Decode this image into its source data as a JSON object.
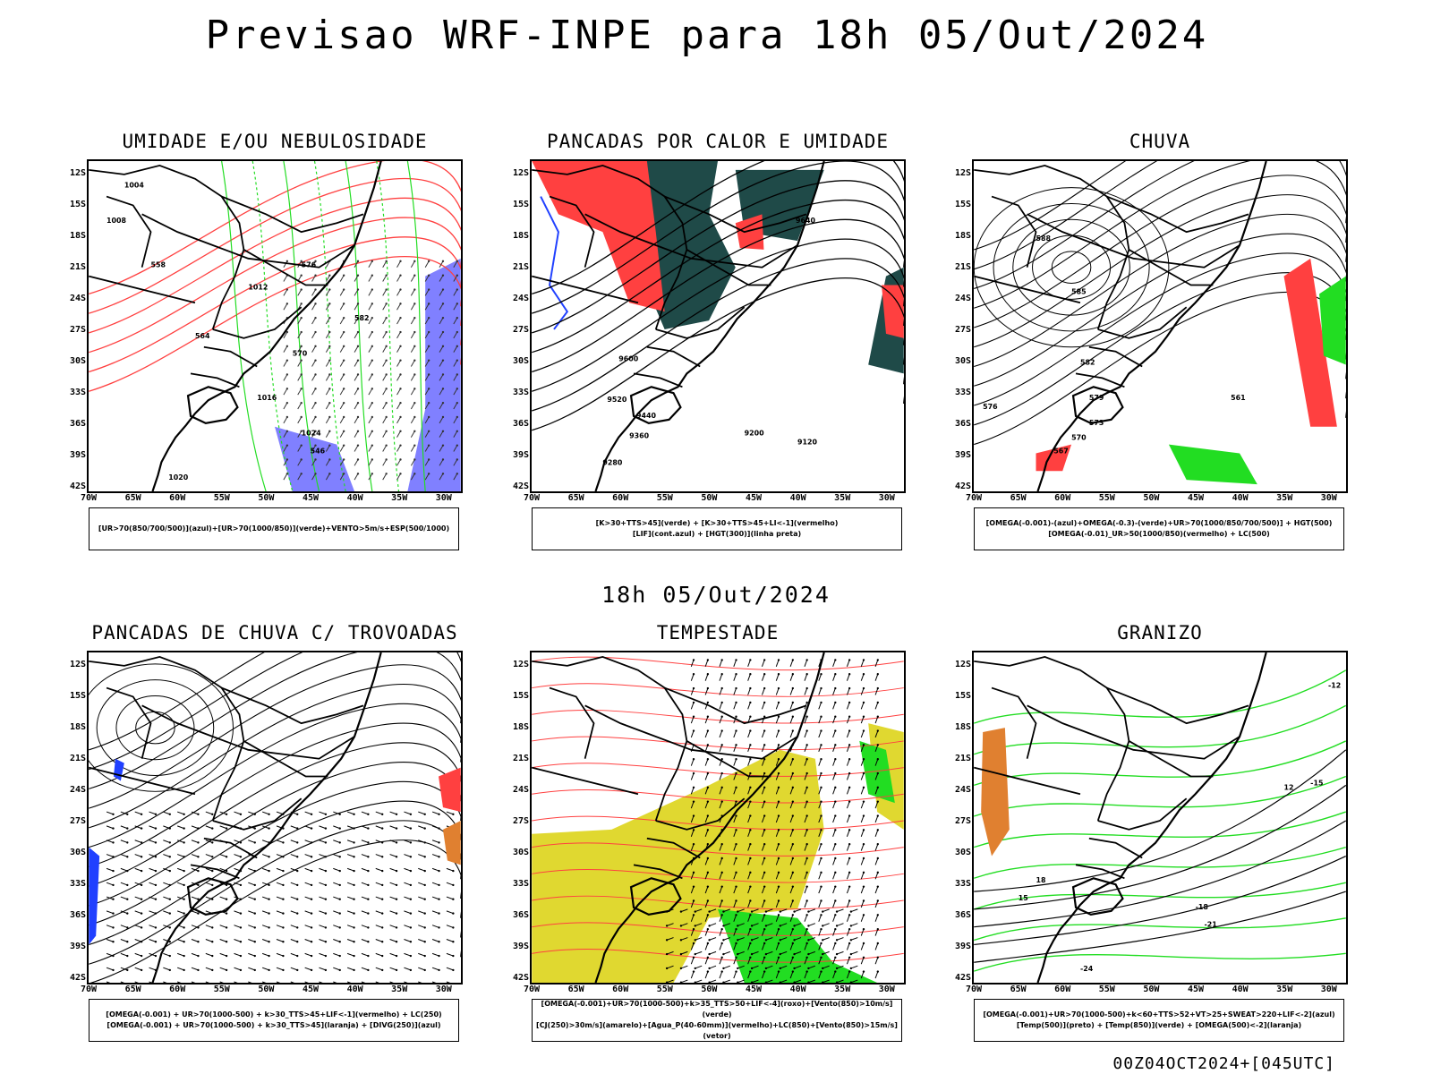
{
  "header": {
    "title": "Previsao WRF-INPE  para 18h 05/Out/2024"
  },
  "middle": {
    "title": "18h 05/Out/2024"
  },
  "footer": {
    "run": "00Z04OCT2024+[045UTC]"
  },
  "axes": {
    "lat_labels": [
      "12S",
      "15S",
      "18S",
      "21S",
      "24S",
      "27S",
      "30S",
      "33S",
      "36S",
      "39S",
      "42S"
    ],
    "lon_labels": [
      "70W",
      "65W",
      "60W",
      "55W",
      "50W",
      "45W",
      "40W",
      "35W",
      "30W"
    ]
  },
  "colors": {
    "red": "#ff4040",
    "green": "#22dd22",
    "blue": "#2040ff",
    "yellow": "#e0d830",
    "teal": "#1f4a48",
    "orange": "#e08030"
  },
  "panels": [
    {
      "title": "UMIDADE E/OU NEBULOSIDADE",
      "legend": [
        "[UR>70(850/700/500)](azul)+[UR>70(1000/850)](verde)+VENTO>5m/s+ESP(500/1000)"
      ],
      "contour_labels": [
        "1004",
        "1008",
        "1012",
        "1016",
        "1020",
        "1024",
        "570",
        "576",
        "582",
        "564",
        "558",
        "546"
      ]
    },
    {
      "title": "PANCADAS POR CALOR E UMIDADE",
      "legend": [
        "[K>30+TTS>45](verde) + [K>30+TTS>45+LI<-1](vermelho)",
        "[LIF](cont.azul) + [HGT(300)](linha preta)"
      ],
      "contour_labels": [
        "9600",
        "9520",
        "9440",
        "9360",
        "9280",
        "9200",
        "9120",
        "9640"
      ]
    },
    {
      "title": "CHUVA",
      "legend": [
        "[OMEGA(-0.001)-(azul)+OMEGA(-0.3)-(verde)+UR>70(1000/850/700/500)] + HGT(500)",
        "[OMEGA(-0.01)_UR>50(1000/850)(vermelho) + LC(500)"
      ],
      "contour_labels": [
        "588",
        "585",
        "582",
        "579",
        "576",
        "573",
        "570",
        "567",
        "561"
      ]
    },
    {
      "title": "PANCADAS DE CHUVA C/ TROVOADAS",
      "legend": [
        "[OMEGA(-0.001) + UR>70(1000-500) + k>30_TTS>45+LIF<-1](vermelho) + LC(250)",
        "[OMEGA(-0.001) + UR>70(1000-500) + k>30_TTS>45](laranja) + [DIVG(250)](azul)"
      ],
      "contour_labels": []
    },
    {
      "title": "TEMPESTADE",
      "legend": [
        "[OMEGA(-0.001)+UR>70(1000-500)+k>35_TTS>50+LIF<-4](roxo)+[Vento(850)>10m/s](verde)",
        "[CJ(250)>30m/s](amarelo)+[Agua_P(40-60mm)](vermelho)+LC(850)+[Vento(850)>15m/s](vetor)"
      ],
      "contour_labels": []
    },
    {
      "title": "GRANIZO",
      "legend": [
        "[OMEGA(-0.001)+UR>70(1000-500)+k<60+TTS>52+VT>25+SWEAT>220+LIF<-2](azul)",
        "[Temp(500)](preto) + [Temp(850)](verde) + [OMEGA(500)<-2](laranja)"
      ],
      "contour_labels": [
        "-12",
        "-15",
        "-18",
        "-21",
        "-24",
        "12",
        "15",
        "18"
      ]
    }
  ]
}
